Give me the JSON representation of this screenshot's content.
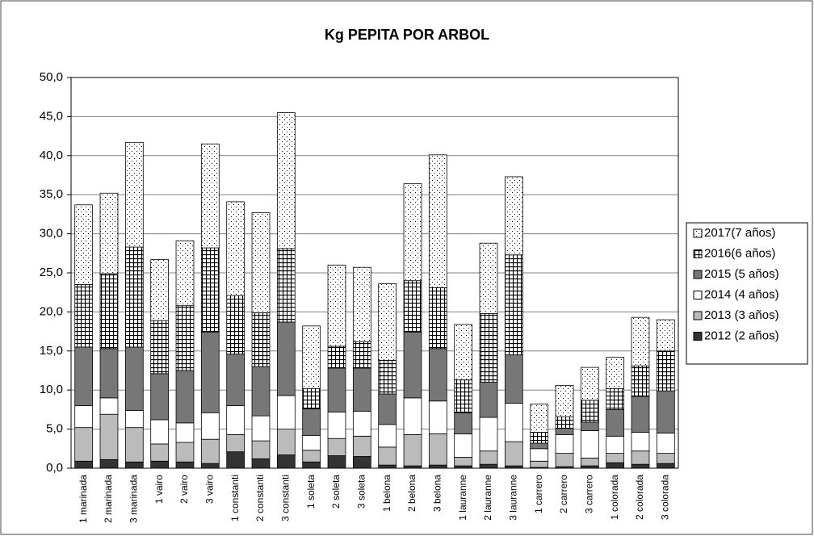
{
  "chart_data": {
    "type": "stacked_bar",
    "title": "Kg PEPITA POR ARBOL",
    "categories": [
      "1 marinada",
      "2 marinada",
      "3 marinada",
      "1 vairo",
      "2 vairo",
      "3 vairo",
      "1 constanti",
      "2 constanti",
      "3 constanti",
      "1 soleta",
      "2 soleta",
      "3 soleta",
      "1 belona",
      "2 belona",
      "3 belona",
      "1 lauranne",
      "2 lauranne",
      "3 lauranne",
      "1 carrero",
      "2 carrero",
      "3 carrero",
      "1 colorada",
      "2 colorada",
      "3 colorada"
    ],
    "series": [
      {
        "name": "2012 (2 años)",
        "color": "#333333",
        "values": [
          0.9,
          1.1,
          0.8,
          0.9,
          0.8,
          0.6,
          2.1,
          1.2,
          1.7,
          0.8,
          1.6,
          1.5,
          0.4,
          0.3,
          0.4,
          0.3,
          0.5,
          0.3,
          0.1,
          0.2,
          0.3,
          0.7,
          0.5,
          0.6
        ]
      },
      {
        "name": "2013 (3 años)",
        "color": "#bbbbbb",
        "values": [
          4.3,
          5.8,
          4.4,
          2.2,
          2.5,
          3.1,
          2.2,
          2.3,
          3.3,
          1.5,
          2.2,
          2.6,
          2.3,
          4.0,
          4.0,
          1.1,
          1.7,
          3.1,
          0.8,
          1.7,
          1.0,
          1.2,
          1.7,
          1.3
        ]
      },
      {
        "name": "2014 (4 años)",
        "color": "#ffffff",
        "values": [
          2.8,
          2.1,
          2.2,
          3.1,
          2.5,
          3.4,
          3.7,
          3.2,
          4.3,
          1.9,
          3.4,
          3.2,
          2.9,
          4.7,
          4.2,
          3.0,
          4.3,
          4.9,
          1.6,
          2.4,
          3.5,
          2.2,
          2.4,
          2.6
        ]
      },
      {
        "name": "2015 (5 años)",
        "color": "#777777",
        "values": [
          7.5,
          6.3,
          8.1,
          5.9,
          6.7,
          10.3,
          6.6,
          6.3,
          9.4,
          3.4,
          5.6,
          5.5,
          3.9,
          8.4,
          6.7,
          2.7,
          4.5,
          6.2,
          0.7,
          0.8,
          1.1,
          3.4,
          4.6,
          5.4
        ]
      },
      {
        "name": "2016(6 años)",
        "color": "#ffffff",
        "pattern": "grid",
        "values": [
          8.0,
          9.6,
          12.8,
          6.8,
          8.3,
          10.8,
          7.5,
          6.9,
          9.4,
          2.6,
          2.8,
          3.4,
          4.3,
          6.6,
          7.8,
          4.2,
          8.8,
          12.8,
          1.4,
          1.5,
          2.8,
          2.7,
          3.9,
          5.1
        ]
      },
      {
        "name": "2017(7 años)",
        "color": "#ffffff",
        "pattern": "dots",
        "values": [
          10.2,
          10.3,
          13.4,
          7.8,
          8.3,
          13.3,
          12.0,
          12.8,
          17.4,
          8.0,
          10.4,
          9.5,
          9.8,
          12.4,
          17.0,
          7.1,
          9.0,
          10.0,
          3.6,
          4.0,
          4.2,
          4.0,
          6.2,
          4.0
        ]
      }
    ],
    "ylim": [
      0,
      50
    ],
    "yticks": [
      {
        "value": 0,
        "label": "0,0"
      },
      {
        "value": 5,
        "label": "5,0"
      },
      {
        "value": 10,
        "label": "10,0"
      },
      {
        "value": 15,
        "label": "15,0"
      },
      {
        "value": 20,
        "label": "20,0"
      },
      {
        "value": 25,
        "label": "25,0"
      },
      {
        "value": 30,
        "label": "30,0"
      },
      {
        "value": 35,
        "label": "35,0"
      },
      {
        "value": 40,
        "label": "40,0"
      },
      {
        "value": 45,
        "label": "45,0"
      },
      {
        "value": 50,
        "label": "50,0"
      }
    ],
    "grid": true,
    "legend": "right"
  }
}
